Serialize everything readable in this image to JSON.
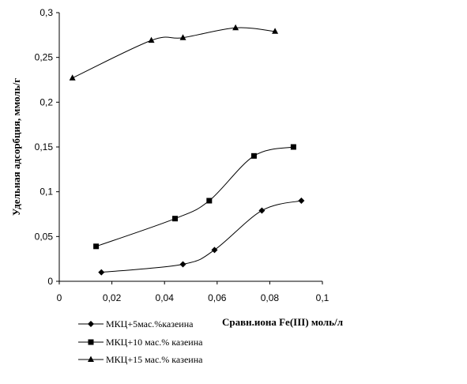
{
  "chart_data": {
    "type": "line",
    "title": "",
    "xlabel": "Сравн.иона Fe(III) моль/л",
    "ylabel": "Удельная адсорбция, ммоль/г",
    "xlim": [
      0,
      0.1
    ],
    "ylim": [
      0,
      0.3
    ],
    "x_ticks": [
      "0",
      "0,02",
      "0,04",
      "0,06",
      "0,08",
      "0,1"
    ],
    "y_ticks": [
      "0",
      "0,05",
      "0,1",
      "0,15",
      "0,2",
      "0,25",
      "0,3"
    ],
    "grid": false,
    "legend_position": "bottom-left",
    "series": [
      {
        "name": "МКЦ+5мас.%казеина",
        "marker": "diamond",
        "color": "#000000",
        "points": [
          [
            0.016,
            0.01
          ],
          [
            0.047,
            0.019
          ],
          [
            0.059,
            0.035
          ],
          [
            0.077,
            0.079
          ],
          [
            0.092,
            0.09
          ]
        ]
      },
      {
        "name": "МКЦ+10 мас.% казеина",
        "marker": "square",
        "color": "#000000",
        "points": [
          [
            0.014,
            0.039
          ],
          [
            0.044,
            0.07
          ],
          [
            0.057,
            0.09
          ],
          [
            0.074,
            0.14
          ],
          [
            0.089,
            0.15
          ]
        ]
      },
      {
        "name": "МКЦ+15 мас.% казеина",
        "marker": "triangle",
        "color": "#000000",
        "points": [
          [
            0.005,
            0.227
          ],
          [
            0.035,
            0.269
          ],
          [
            0.047,
            0.272
          ],
          [
            0.067,
            0.283
          ],
          [
            0.082,
            0.279
          ]
        ]
      }
    ]
  }
}
